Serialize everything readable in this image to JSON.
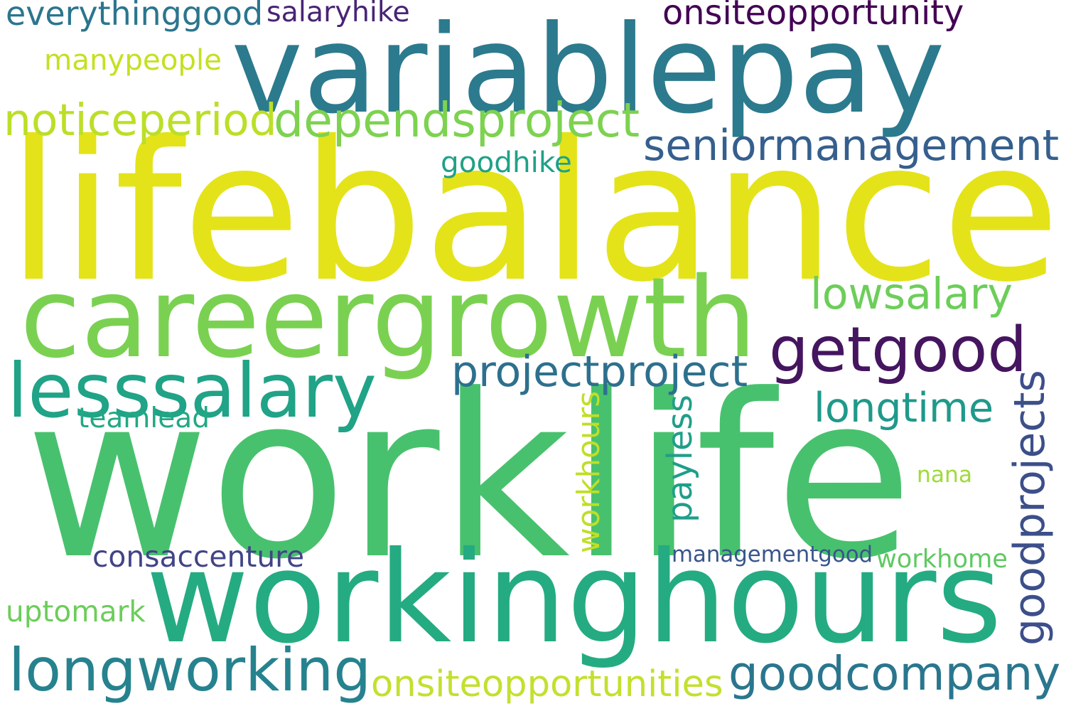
{
  "words": [
    {
      "text": "lifebalance",
      "color": "#e4e319"
    },
    {
      "text": "worklife",
      "color": "#48c16e"
    },
    {
      "text": "variablepay",
      "color": "#2c7a8d"
    },
    {
      "text": "careergrowth",
      "color": "#7ad151"
    },
    {
      "text": "workinghours",
      "color": "#25ab81"
    },
    {
      "text": "getgood",
      "color": "#45155f"
    },
    {
      "text": "lesssalary",
      "color": "#20a386"
    },
    {
      "text": "goodcompany",
      "color": "#2a768e"
    },
    {
      "text": "longworking",
      "color": "#26828e"
    },
    {
      "text": "seniormanagement",
      "color": "#355f8d"
    },
    {
      "text": "dependsproject",
      "color": "#7dd250"
    },
    {
      "text": "noticeperiod",
      "color": "#bbdf27"
    },
    {
      "text": "goodprojects",
      "color": "#3c4f8a"
    },
    {
      "text": "projectproject",
      "color": "#2d708e"
    },
    {
      "text": "lowsalary",
      "color": "#6cce59"
    },
    {
      "text": "longtime",
      "color": "#1f998a"
    },
    {
      "text": "onsiteopportunities",
      "color": "#c3e02e"
    },
    {
      "text": "onsiteopportunity",
      "color": "#440154"
    },
    {
      "text": "everythinggood",
      "color": "#2b758e"
    },
    {
      "text": "manypeople",
      "color": "#c5e021"
    },
    {
      "text": "payless",
      "color": "#1f9e89"
    },
    {
      "text": "workhours",
      "color": "#c0df25"
    },
    {
      "text": "consaccenture",
      "color": "#414487"
    },
    {
      "text": "managementgood",
      "color": "#39558c"
    },
    {
      "text": "workhome",
      "color": "#5ec962"
    },
    {
      "text": "uptomark",
      "color": "#6ccd5a"
    },
    {
      "text": "teamlead",
      "color": "#22a884"
    },
    {
      "text": "goodhike",
      "color": "#1fa187"
    },
    {
      "text": "nana",
      "color": "#a0da39"
    },
    {
      "text": "salaryhike",
      "color": "#482475"
    }
  ]
}
